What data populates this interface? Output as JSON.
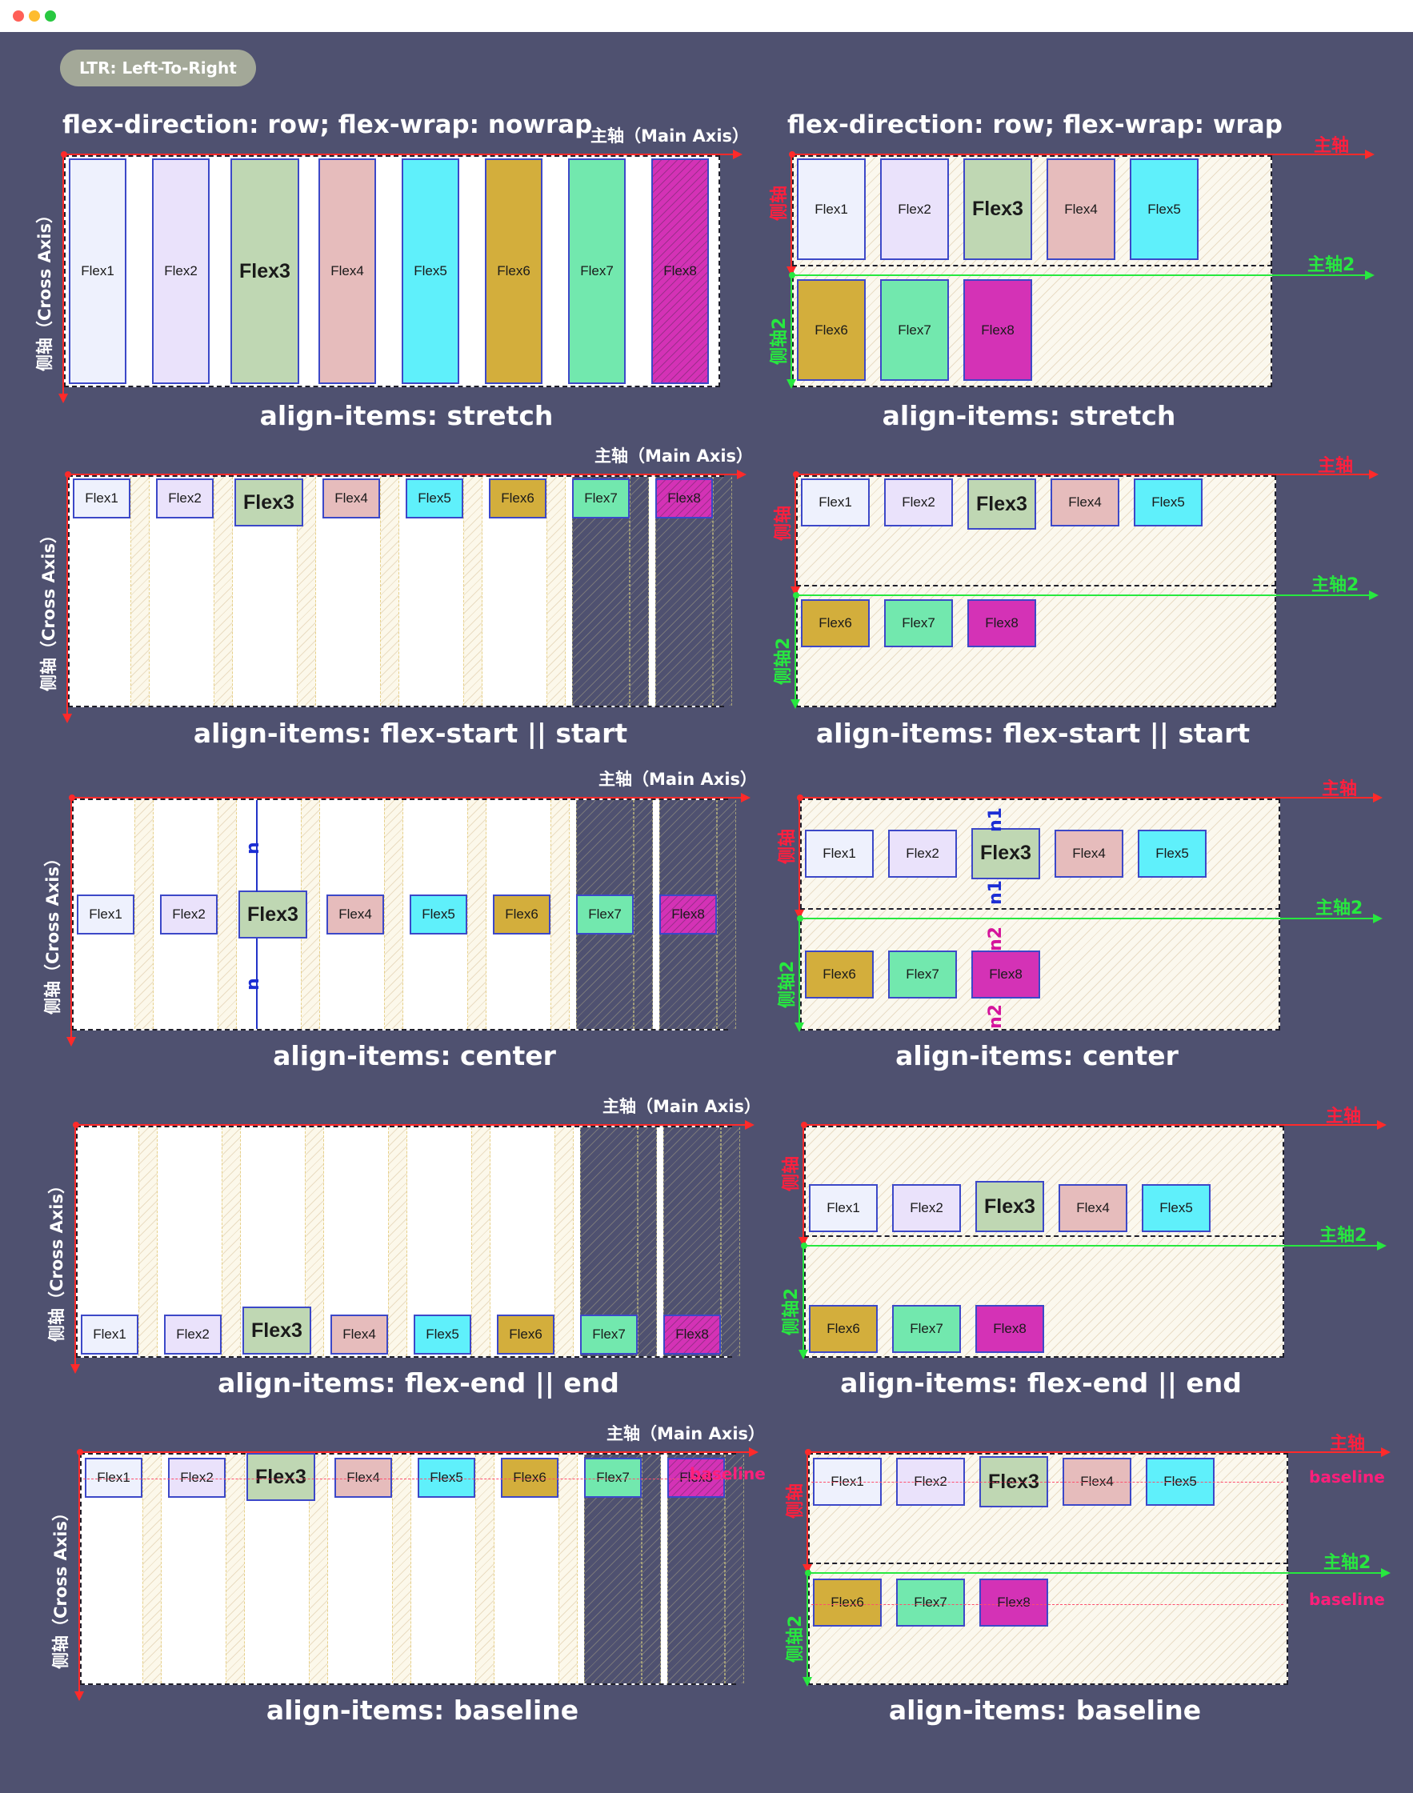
{
  "window": {
    "dots": [
      {
        "name": "close-dot",
        "color": "#ff5f57"
      },
      {
        "name": "minimize-dot",
        "color": "#febc2e"
      },
      {
        "name": "maximize-dot",
        "color": "#28c840"
      }
    ]
  },
  "badge": "LTR: Left-To-Right",
  "headers": {
    "left": "flex-direction: row; flex-wrap: nowrap",
    "right": "flex-direction: row; flex-wrap: wrap"
  },
  "axis": {
    "main_axis": "主轴（Main Axis）",
    "cross_axis": "侧轴（Cross Axis）",
    "main": "主轴",
    "cross": "侧轴",
    "main2": "主轴2",
    "cross2": "侧轴2",
    "baseline": "baseline",
    "n": "n",
    "n1": "n1",
    "n2": "n2"
  },
  "sections": [
    {
      "left_label": "align-items: stretch",
      "right_label": "align-items: stretch"
    },
    {
      "left_label": "align-items: flex-start  ||  start",
      "right_label": "align-items: flex-start  ||  start"
    },
    {
      "left_label": "align-items: center",
      "right_label": "align-items: center"
    },
    {
      "left_label": "align-items: flex-end  ||  end",
      "right_label": "align-items: flex-end  ||  end"
    },
    {
      "left_label": "align-items: baseline",
      "right_label": "align-items: baseline"
    }
  ],
  "items": [
    {
      "label": "Flex1",
      "color": "#eef1fd"
    },
    {
      "label": "Flex2",
      "color": "#eae2fb"
    },
    {
      "label": "Flex3",
      "color": "#bfd7b3"
    },
    {
      "label": "Flex4",
      "color": "#e6bcbc"
    },
    {
      "label": "Flex5",
      "color": "#5ff0fb"
    },
    {
      "label": "Flex6",
      "color": "#d3ae3c"
    },
    {
      "label": "Flex7",
      "color": "#72e8ae"
    },
    {
      "label": "Flex8",
      "color": "#d432b6"
    }
  ]
}
